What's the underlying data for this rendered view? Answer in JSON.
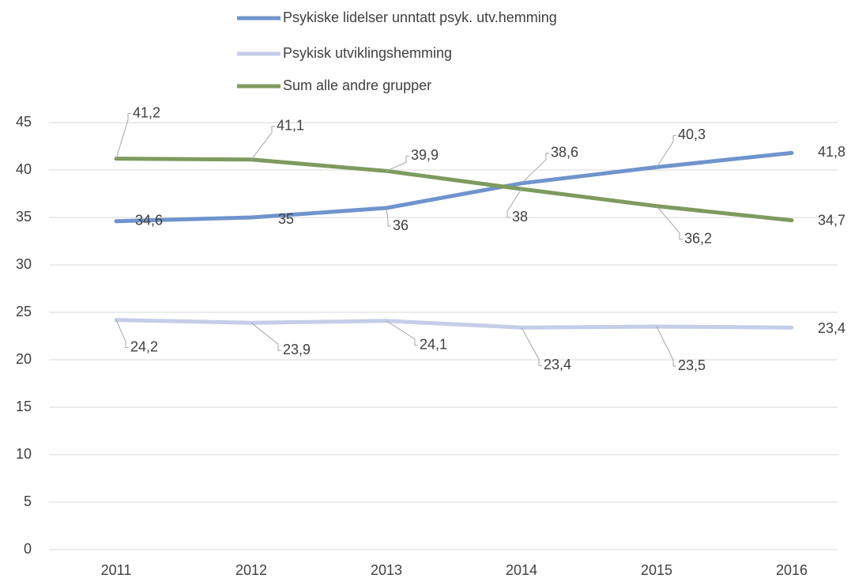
{
  "chart_data": {
    "type": "line",
    "categories": [
      "2011",
      "2012",
      "2013",
      "2014",
      "2015",
      "2016"
    ],
    "series": [
      {
        "name": "Psykiske lidelser unntatt psyk. utv.hemming",
        "color": "#6f94cd",
        "values": [
          34.6,
          35,
          36,
          38.6,
          40.3,
          41.8
        ],
        "value_labels": [
          "34,6",
          "35",
          "36",
          "38,6",
          "40,3",
          "41,8"
        ]
      },
      {
        "name": "Psykisk utviklingshemming",
        "color": "#c5cde8",
        "values": [
          24.2,
          23.9,
          24.1,
          23.4,
          23.5,
          23.4
        ],
        "value_labels": [
          "24,2",
          "23,9",
          "24,1",
          "23,4",
          "23,5",
          "23,4"
        ]
      },
      {
        "name": "Sum alle andre grupper",
        "color": "#7d9b5e",
        "values": [
          41.2,
          41.1,
          39.9,
          38,
          36.2,
          34.7
        ],
        "value_labels": [
          "41,2",
          "41,1",
          "39,9",
          "38",
          "36,2",
          "34,7"
        ]
      }
    ],
    "ylim": [
      0,
      45
    ],
    "yticks": [
      0,
      5,
      10,
      15,
      20,
      25,
      30,
      35,
      40,
      45
    ],
    "grid": true,
    "legend": "top"
  }
}
